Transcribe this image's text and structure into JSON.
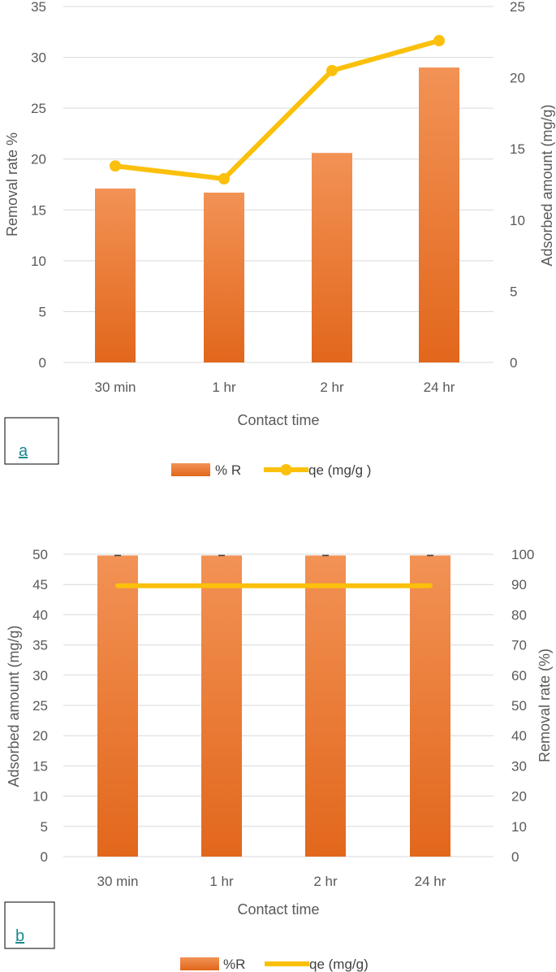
{
  "colors": {
    "bar_top": "#f29255",
    "bar_bottom": "#e2671c",
    "line": "#fbc00b",
    "grid": "#d9d9d9",
    "text": "#595959"
  },
  "chart_data": [
    {
      "type": "bar+line",
      "panel_label": "a",
      "categories": [
        "30 min",
        "1 hr",
        "2 hr",
        "24 hr"
      ],
      "xlabel": "Contact time",
      "ylabel_left": "Removal rate %",
      "ylabel_right": "Adsorbed  amount (mg/g)",
      "ylim_left": [
        0,
        35
      ],
      "yticks_left": [
        0,
        5,
        10,
        15,
        20,
        25,
        30,
        35
      ],
      "ylim_right": [
        0,
        25
      ],
      "yticks_right": [
        0,
        5,
        10,
        15,
        20,
        25
      ],
      "grid": true,
      "legend_position": "bottom",
      "series": [
        {
          "name": "% R",
          "type": "bar",
          "axis": "left",
          "values": [
            17.1,
            16.7,
            20.6,
            29.0
          ]
        },
        {
          "name": "qe (mg/g )",
          "type": "line",
          "axis": "right",
          "markers": true,
          "values": [
            13.8,
            12.9,
            20.5,
            22.6
          ]
        }
      ]
    },
    {
      "type": "bar+line",
      "panel_label": "b",
      "categories": [
        "30 min",
        "1 hr",
        "2 hr",
        "24 hr"
      ],
      "xlabel": "Contact time",
      "ylabel_left": "Adsorbed amount (mg/g)",
      "ylabel_right": "Removal rate (%)",
      "ylim_left": [
        0,
        50
      ],
      "yticks_left": [
        0,
        5,
        10,
        15,
        20,
        25,
        30,
        35,
        40,
        45,
        50
      ],
      "ylim_right": [
        0,
        100
      ],
      "yticks_right": [
        0,
        10,
        20,
        30,
        40,
        50,
        60,
        70,
        80,
        90,
        100
      ],
      "grid": true,
      "legend_position": "bottom",
      "series": [
        {
          "name": "%R",
          "type": "bar",
          "axis": "right",
          "error_bars": true,
          "values": [
            99.6,
            99.6,
            99.6,
            99.6
          ]
        },
        {
          "name": "qe (mg/g)",
          "type": "line",
          "axis": "left",
          "markers": false,
          "values": [
            44.8,
            44.8,
            44.8,
            44.8
          ]
        }
      ]
    }
  ]
}
